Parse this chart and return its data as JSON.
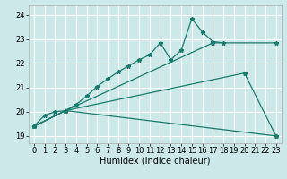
{
  "xlabel": "Humidex (Indice chaleur)",
  "bg_color": "#cce8e8",
  "grid_color": "#ffffff",
  "line_color": "#1a7a6e",
  "xlim": [
    -0.5,
    23.5
  ],
  "ylim": [
    18.7,
    24.4
  ],
  "yticks": [
    19,
    20,
    21,
    22,
    23,
    24
  ],
  "line1_x": [
    0,
    1,
    2,
    3,
    4,
    5,
    6,
    7,
    8,
    9,
    10,
    11,
    12,
    13,
    14,
    15,
    16,
    17,
    18
  ],
  "line1_y": [
    19.4,
    19.85,
    20.0,
    20.05,
    20.3,
    20.65,
    21.05,
    21.35,
    21.65,
    21.9,
    22.15,
    22.35,
    22.85,
    22.15,
    22.55,
    23.85,
    23.3,
    22.9,
    22.85
  ],
  "line2_x": [
    0,
    3,
    17,
    23
  ],
  "line2_y": [
    19.4,
    20.05,
    22.85,
    22.85
  ],
  "line3_x": [
    0,
    3,
    20,
    23
  ],
  "line3_y": [
    19.4,
    20.05,
    21.6,
    19.0
  ],
  "line4_x": [
    0,
    3,
    23
  ],
  "line4_y": [
    19.4,
    20.05,
    19.0
  ],
  "tick_fontsize": 6,
  "xlabel_fontsize": 7
}
